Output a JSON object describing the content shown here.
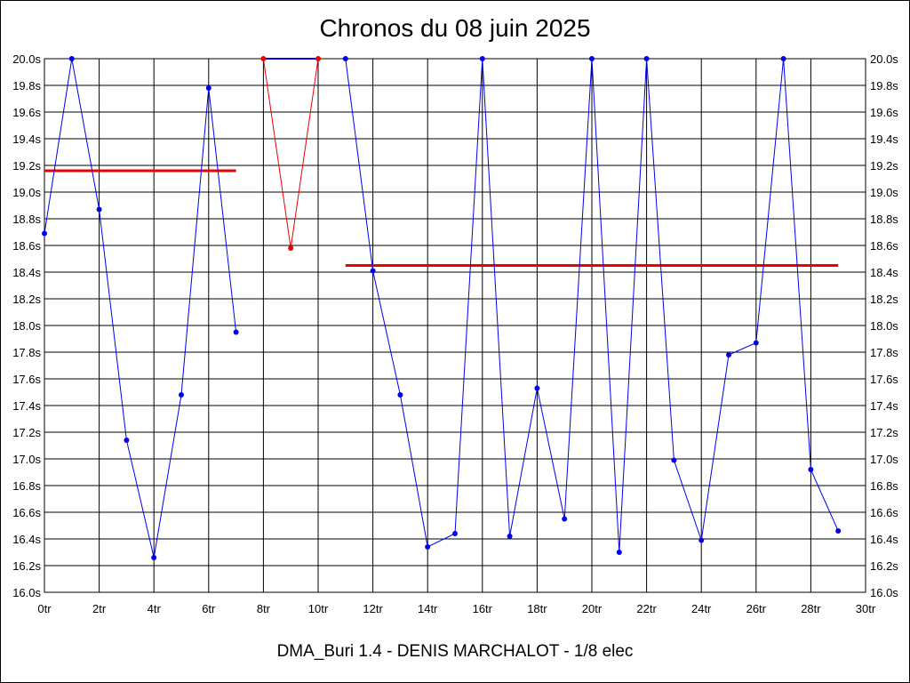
{
  "chart_data": {
    "type": "line",
    "title": "Chronos du 08 juin 2025",
    "subtitle": "DMA_Buri 1.4 - DENIS MARCHALOT - 1/8 elec",
    "xlim": [
      0,
      30
    ],
    "ylim": [
      16.0,
      20.0
    ],
    "x_ticks": [
      "0tr",
      "2tr",
      "4tr",
      "6tr",
      "8tr",
      "10tr",
      "12tr",
      "14tr",
      "16tr",
      "18tr",
      "20tr",
      "22tr",
      "24tr",
      "26tr",
      "28tr",
      "30tr"
    ],
    "y_ticks": [
      "16.0s",
      "16.2s",
      "16.4s",
      "16.6s",
      "16.8s",
      "17.0s",
      "17.2s",
      "17.4s",
      "17.6s",
      "17.8s",
      "18.0s",
      "18.2s",
      "18.4s",
      "18.6s",
      "18.8s",
      "19.0s",
      "19.2s",
      "19.4s",
      "19.6s",
      "19.8s",
      "20.0s"
    ],
    "grid": true,
    "colors": {
      "series": "#0000ee",
      "highlight": "#ee0000",
      "average": "#ee0000",
      "grid": "#000000"
    },
    "segments": [
      {
        "color": "#0000ee",
        "points": [
          [
            0,
            18.69
          ],
          [
            1,
            20.0
          ],
          [
            2,
            18.87
          ],
          [
            3,
            17.14
          ],
          [
            4,
            16.26
          ],
          [
            5,
            17.48
          ],
          [
            6,
            19.78
          ],
          [
            7,
            17.95
          ]
        ]
      },
      {
        "color": "#ee0000",
        "points": [
          [
            8,
            20.0
          ],
          [
            9,
            18.58
          ],
          [
            10,
            20.0
          ]
        ]
      },
      {
        "color": "#0000ee",
        "points": [
          [
            11,
            20.0
          ],
          [
            12,
            18.41
          ],
          [
            13,
            17.48
          ],
          [
            14,
            16.34
          ],
          [
            15,
            16.44
          ],
          [
            16,
            20.0
          ],
          [
            17,
            16.42
          ],
          [
            18,
            17.53
          ],
          [
            19,
            16.55
          ],
          [
            20,
            20.0
          ],
          [
            21,
            16.3
          ],
          [
            22,
            20.0
          ],
          [
            23,
            16.99
          ],
          [
            24,
            16.39
          ],
          [
            25,
            17.78
          ],
          [
            26,
            17.87
          ],
          [
            27,
            20.0
          ],
          [
            28,
            16.92
          ],
          [
            29,
            16.46
          ]
        ]
      }
    ],
    "extra_lines": [
      {
        "color": "#0000ee",
        "points": [
          [
            8,
            20.0
          ],
          [
            10,
            20.0
          ]
        ]
      }
    ],
    "average_lines": [
      {
        "x": [
          0,
          7
        ],
        "y": 19.16
      },
      {
        "x": [
          11,
          29
        ],
        "y": 18.45
      }
    ]
  }
}
